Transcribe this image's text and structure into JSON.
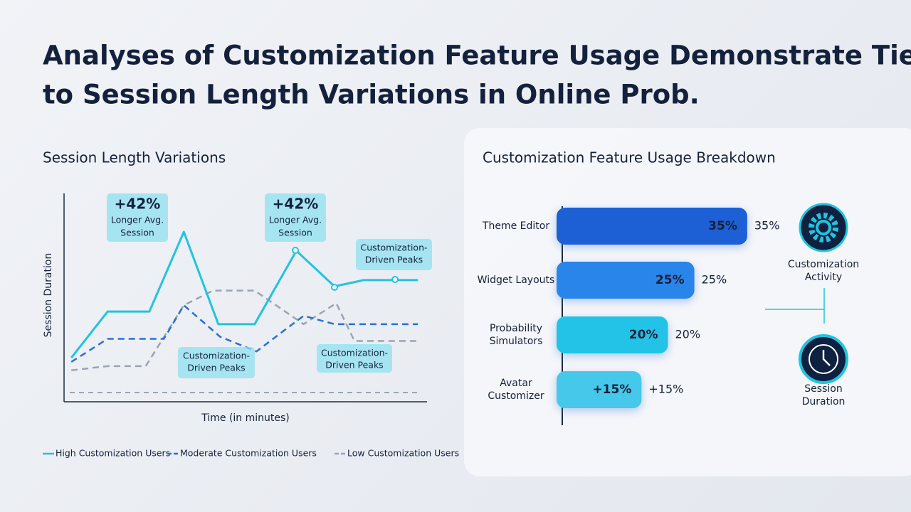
{
  "title": "Analyses of Customization Feature Usage Demonstrate Ties to Session Length Variations in Online Prob.",
  "chart_data": [
    {
      "type": "line",
      "title": "Session Length Variations",
      "x_label": "Time (in minutes)",
      "y_label": "Session Duration",
      "xlim": [
        0,
        10
      ],
      "ylim": [
        0,
        100
      ],
      "series": [
        {
          "name": "High Customization Users",
          "color": "#22c3e0",
          "dash": "solid",
          "x": [
            0.2,
            1.2,
            2.35,
            3.3,
            4.25,
            5.25,
            6.4,
            7.45,
            8.25,
            9.75
          ],
          "values": [
            21,
            43,
            43,
            81,
            37,
            37,
            72,
            55,
            58,
            58
          ]
        },
        {
          "name": "Moderate Customization Users",
          "color": "#2a6fdb",
          "dash": "dashed",
          "x": [
            0.2,
            1.2,
            2.75,
            3.3,
            4.3,
            5.3,
            6.6,
            7.45,
            9.75
          ],
          "values": [
            19,
            30,
            30,
            46,
            31,
            24,
            41,
            37,
            37
          ]
        },
        {
          "name": "Low Customization Users",
          "color": "#9aa4b4",
          "dash": "dashed",
          "x": [
            0.2,
            1.2,
            2.25,
            3.3,
            4.1,
            5.25,
            6.6,
            7.5,
            8.0,
            9.75
          ],
          "values": [
            15,
            17,
            17,
            46,
            53,
            53,
            37,
            47,
            29,
            29
          ]
        }
      ],
      "annotations": [
        {
          "lines": [
            "+42%",
            "Longer Avg.",
            "Session"
          ]
        },
        {
          "lines": [
            "+42%",
            "Longer Avg.",
            "Session"
          ]
        },
        {
          "lines": [
            "Customization-",
            "Driven Peaks"
          ]
        },
        {
          "lines": [
            "Customization-",
            "Driven Peaks"
          ]
        },
        {
          "lines": [
            "Customization-",
            "Driven Peaks"
          ]
        }
      ]
    },
    {
      "type": "hbar",
      "title": "Customization Feature Usage Breakdown",
      "categories": [
        "Theme Editor",
        "Widget Layouts",
        "Probability Simulators",
        "Avatar Customizer"
      ],
      "values": [
        35,
        25,
        20,
        15
      ],
      "value_labels": [
        "35%",
        "25%",
        "20%",
        "+15%"
      ],
      "colors": [
        "#1d5fd4",
        "#2a85ea",
        "#22c3e6",
        "#45c8ea"
      ],
      "xlim": [
        0,
        40
      ],
      "icons": [
        "Customization Activity",
        "Session Duration"
      ]
    }
  ]
}
